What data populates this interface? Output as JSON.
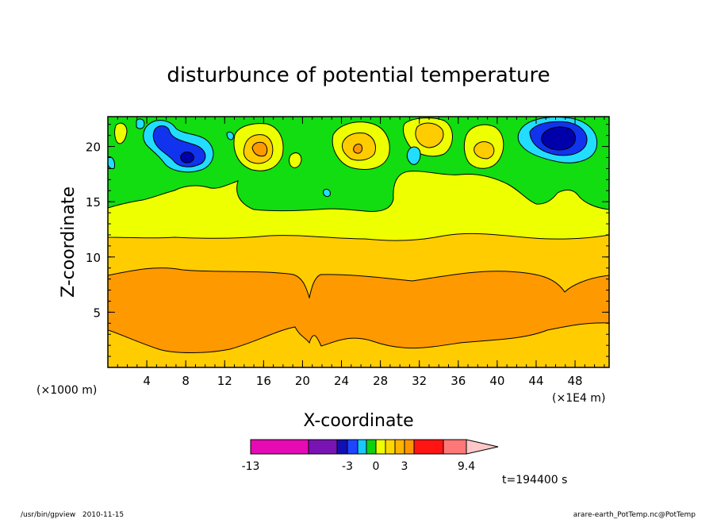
{
  "chart_data": {
    "type": "heatmap",
    "title": "disturbunce of potential temperature",
    "xlabel": "X-coordinate",
    "ylabel": "Z-coordinate",
    "x_unit": "(×1E4 m)",
    "y_unit": "(×1000 m)",
    "x_ticks": [
      "4",
      "8",
      "12",
      "16",
      "20",
      "24",
      "28",
      "32",
      "36",
      "40",
      "44",
      "48"
    ],
    "y_ticks": [
      "5",
      "10",
      "15",
      "20"
    ],
    "xlim": [
      0,
      51.5
    ],
    "ylim": [
      0,
      22.7
    ],
    "colorbar": {
      "labels": [
        "-13",
        "-3",
        "0",
        "3",
        "9.4"
      ],
      "colors": [
        "#e60ab4",
        "#7814b4",
        "#1010b4",
        "#1e46ff",
        "#18c8ff",
        "#10d010",
        "#f0ff00",
        "#ffd700",
        "#ffb400",
        "#ff9600",
        "#ff1414",
        "#ff7878",
        "#ffc8c8"
      ]
    },
    "time_label": "t=194400 s",
    "layer_colors": {
      "orange": "#ff9900",
      "amber": "#ffcc00",
      "yellow": "#eeff00",
      "green": "#11dd11",
      "cyan": "#22ddff",
      "blue": "#1133ee",
      "darkblue": "#0000aa"
    }
  },
  "footer": {
    "left": "/usr/bin/gpview   2010-11-15",
    "right": "arare-earth_PotTemp.nc@PotTemp"
  }
}
